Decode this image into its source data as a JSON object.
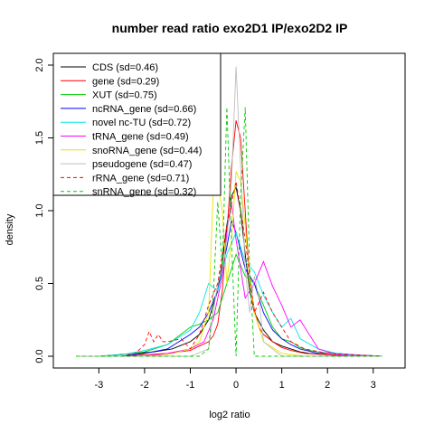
{
  "chart_data": {
    "type": "line",
    "title": "number read ratio exo2D1 IP/exo2D2 IP",
    "xlabel": "log2 ratio",
    "ylabel": "density",
    "xlim": [
      -3.6,
      3.4
    ],
    "ylim": [
      0,
      2.0
    ],
    "x_ticks": [
      -3,
      -2,
      -1,
      0,
      1,
      2,
      3
    ],
    "x_tick_labels": [
      "-3",
      "-2",
      "-1",
      "0",
      "1",
      "2",
      "3"
    ],
    "y_ticks": [
      0,
      0.5,
      1.0,
      1.5,
      2.0
    ],
    "y_tick_labels": [
      "0.0",
      "0.5",
      "1.0",
      "1.5",
      "2.0"
    ],
    "legend_position": "top-left",
    "series": [
      {
        "name": "CDS (sd=0.46)",
        "color": "#000000",
        "dash": "solid",
        "x": [
          -3.5,
          -3.0,
          -2.6,
          -2.2,
          -1.8,
          -1.4,
          -1.0,
          -0.8,
          -0.6,
          -0.4,
          -0.3,
          -0.2,
          -0.1,
          0.0,
          0.1,
          0.2,
          0.3,
          0.4,
          0.6,
          0.8,
          1.0,
          1.2,
          1.4,
          1.6,
          2.0,
          2.5,
          3.2
        ],
        "y": [
          0.0,
          0.0,
          0.01,
          0.02,
          0.03,
          0.05,
          0.1,
          0.15,
          0.25,
          0.45,
          0.65,
          0.9,
          1.1,
          1.16,
          1.0,
          0.7,
          0.45,
          0.3,
          0.18,
          0.1,
          0.07,
          0.05,
          0.03,
          0.02,
          0.01,
          0.0,
          0.0
        ]
      },
      {
        "name": "gene (sd=0.29)",
        "color": "#ff0000",
        "dash": "solid",
        "x": [
          -3.5,
          -2.5,
          -2.0,
          -1.5,
          -1.0,
          -0.8,
          -0.6,
          -0.5,
          -0.4,
          -0.3,
          -0.2,
          -0.1,
          0.0,
          0.1,
          0.2,
          0.3,
          0.4,
          0.5,
          0.6,
          0.8,
          1.0,
          1.2,
          1.5,
          2.0,
          2.5,
          3.2
        ],
        "y": [
          0.0,
          0.0,
          0.01,
          0.02,
          0.04,
          0.07,
          0.1,
          0.14,
          0.22,
          0.45,
          0.85,
          1.3,
          1.62,
          1.5,
          1.0,
          0.5,
          0.32,
          0.2,
          0.15,
          0.1,
          0.06,
          0.04,
          0.02,
          0.01,
          0.0,
          0.0
        ]
      },
      {
        "name": "XUT (sd=0.75)",
        "color": "#00cc00",
        "dash": "solid",
        "x": [
          -3.5,
          -3.0,
          -2.5,
          -2.0,
          -1.5,
          -1.0,
          -0.8,
          -0.6,
          -0.4,
          -0.2,
          0.0,
          0.2,
          0.4,
          0.6,
          0.8,
          1.0,
          1.2,
          1.4,
          1.6,
          2.0,
          2.5,
          3.2
        ],
        "y": [
          0.0,
          0.0,
          0.01,
          0.03,
          0.08,
          0.2,
          0.22,
          0.25,
          0.3,
          0.5,
          0.7,
          0.55,
          0.5,
          0.35,
          0.2,
          0.12,
          0.1,
          0.06,
          0.04,
          0.02,
          0.01,
          0.0
        ]
      },
      {
        "name": "ncRNA_gene (sd=0.66)",
        "color": "#0000ff",
        "dash": "solid",
        "x": [
          -3.5,
          -3.0,
          -2.5,
          -2.0,
          -1.5,
          -1.0,
          -0.8,
          -0.6,
          -0.4,
          -0.2,
          -0.1,
          0.0,
          0.2,
          0.4,
          0.6,
          0.8,
          1.0,
          1.2,
          1.4,
          1.8,
          2.2,
          2.6,
          3.2
        ],
        "y": [
          0.0,
          0.0,
          0.0,
          0.02,
          0.05,
          0.15,
          0.2,
          0.3,
          0.45,
          0.75,
          0.93,
          0.85,
          0.6,
          0.5,
          0.3,
          0.18,
          0.12,
          0.08,
          0.05,
          0.02,
          0.02,
          0.01,
          0.0
        ]
      },
      {
        "name": "novel nc-TU (sd=0.72)",
        "color": "#00e5e5",
        "dash": "solid",
        "x": [
          -3.5,
          -3.0,
          -2.5,
          -2.0,
          -1.5,
          -1.0,
          -0.8,
          -0.6,
          -0.4,
          -0.2,
          0.0,
          0.2,
          0.4,
          0.6,
          0.8,
          1.0,
          1.2,
          1.4,
          1.8,
          2.2,
          2.6,
          3.2
        ],
        "y": [
          0.0,
          0.0,
          0.01,
          0.04,
          0.08,
          0.18,
          0.3,
          0.5,
          0.45,
          0.7,
          0.85,
          0.65,
          0.58,
          0.42,
          0.3,
          0.2,
          0.26,
          0.12,
          0.05,
          0.02,
          0.01,
          0.0
        ]
      },
      {
        "name": "tRNA_gene (sd=0.49)",
        "color": "#ff00ff",
        "dash": "solid",
        "x": [
          -3.5,
          -2.5,
          -2.0,
          -1.5,
          -1.0,
          -0.7,
          -0.5,
          -0.3,
          -0.2,
          -0.1,
          0.0,
          0.2,
          0.4,
          0.6,
          0.8,
          1.0,
          1.2,
          1.4,
          1.8,
          2.2,
          3.2
        ],
        "y": [
          0.0,
          0.0,
          0.0,
          0.02,
          0.05,
          0.1,
          0.25,
          0.55,
          0.85,
          1.05,
          0.8,
          0.4,
          0.5,
          0.65,
          0.48,
          0.35,
          0.2,
          0.25,
          0.05,
          0.01,
          0.0
        ]
      },
      {
        "name": "snoRNA_gene (sd=0.44)",
        "color": "#e5e500",
        "dash": "solid",
        "x": [
          -3.5,
          -2.0,
          -1.5,
          -1.0,
          -0.8,
          -0.6,
          -0.5,
          -0.4,
          -0.3,
          -0.2,
          -0.1,
          0.0,
          0.1,
          0.2,
          0.3,
          0.4,
          0.6,
          1.0,
          1.5,
          2.0,
          3.2
        ],
        "y": [
          0.0,
          0.0,
          0.01,
          0.05,
          0.1,
          0.3,
          1.12,
          1.2,
          1.0,
          0.5,
          0.8,
          1.27,
          1.2,
          0.9,
          0.5,
          0.3,
          0.1,
          0.02,
          0.0,
          0.0,
          0.0
        ]
      },
      {
        "name": "pseudogene (sd=0.47)",
        "color": "#bebebe",
        "dash": "solid",
        "x": [
          -3.5,
          -1.5,
          -1.0,
          -0.6,
          -0.5,
          -0.4,
          -0.3,
          -0.2,
          -0.1,
          0.0,
          0.1,
          0.2,
          0.3,
          0.4,
          0.5,
          0.6,
          1.0,
          1.5,
          3.2
        ],
        "y": [
          0.0,
          0.0,
          0.0,
          0.05,
          0.3,
          0.5,
          0.6,
          0.8,
          1.2,
          1.99,
          1.3,
          0.6,
          0.3,
          0.55,
          0.4,
          0.1,
          0.0,
          0.0,
          0.0
        ]
      },
      {
        "name": "rRNA_gene (sd=0.71)",
        "color": "#ff0000",
        "dash": "dashed",
        "x": [
          -3.5,
          -2.5,
          -2.2,
          -2.0,
          -1.9,
          -1.8,
          -1.7,
          -1.6,
          -1.5,
          -1.2,
          -1.0,
          -0.8,
          -0.6,
          -0.4,
          -0.2,
          0.0,
          0.2,
          0.4,
          0.6,
          0.8,
          1.0,
          1.2,
          1.5,
          2.0,
          3.2
        ],
        "y": [
          0.0,
          0.0,
          0.02,
          0.08,
          0.17,
          0.1,
          0.15,
          0.1,
          0.1,
          0.12,
          0.05,
          0.15,
          0.35,
          0.5,
          0.9,
          1.2,
          0.8,
          0.3,
          0.44,
          0.3,
          0.2,
          0.1,
          0.05,
          0.02,
          0.0
        ]
      },
      {
        "name": "snRNA_gene (sd=0.32)",
        "color": "#00cc00",
        "dash": "dashed",
        "x": [
          -3.5,
          -1.0,
          -0.8,
          -0.6,
          -0.5,
          -0.4,
          -0.3,
          -0.2,
          -0.1,
          0.0,
          0.1,
          0.2,
          0.3,
          0.4,
          0.5,
          0.8,
          1.5,
          3.2
        ],
        "y": [
          0.0,
          0.0,
          0.0,
          0.05,
          0.4,
          1.06,
          0.6,
          1.71,
          0.8,
          0.0,
          1.1,
          1.71,
          0.6,
          0.0,
          0.0,
          0.0,
          0.0,
          0.0
        ]
      }
    ]
  }
}
